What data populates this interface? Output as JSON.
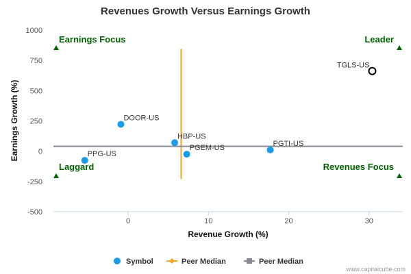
{
  "chart_data": {
    "type": "scatter",
    "title": "Revenues Growth Versus Earnings Growth",
    "xlabel": "Revenue Growth (%)",
    "ylabel": "Earnings Growth (%)",
    "xlim": [
      -9.3,
      34.2
    ],
    "ylim": [
      -500,
      1000
    ],
    "xticks": [
      0,
      10,
      20,
      30
    ],
    "xtick_labels": [
      "0",
      "10",
      "20",
      "30"
    ],
    "yticks": [
      -500,
      -250,
      0,
      250,
      500,
      750,
      1000
    ],
    "ytick_labels": [
      "-500",
      "-250",
      "0",
      "250",
      "500",
      "750",
      "1000"
    ],
    "grid": false,
    "series": [
      {
        "name": "Symbol",
        "color": "#1a9ce8",
        "points": [
          {
            "label": "DOOR-US",
            "x": -0.9,
            "y": 222
          },
          {
            "label": "HBP-US",
            "x": 5.8,
            "y": 70
          },
          {
            "label": "PGEM-US",
            "x": 7.3,
            "y": -25
          },
          {
            "label": "PGTI-US",
            "x": 17.7,
            "y": 10
          },
          {
            "label": "PPG-US",
            "x": -5.4,
            "y": -76
          }
        ]
      },
      {
        "name": "Peer Median",
        "color": "#f5a623",
        "orientation": "vertical",
        "x": 6.6,
        "y_range": [
          -230,
          845
        ]
      },
      {
        "name": "Peer Median",
        "color": "#8a8a96",
        "orientation": "horizontal",
        "y": 40,
        "x_range": [
          -9.3,
          34.2
        ]
      }
    ],
    "highlight": {
      "label": "TGLS-US",
      "x": 30.4,
      "y": 662
    },
    "quadrant_labels": {
      "top_left": "Earnings Focus",
      "top_right": "Leader",
      "bottom_left": "Laggard",
      "bottom_right": "Revenues Focus"
    },
    "quadrant_marker_color": "#006400",
    "legend_position": "bottom-center"
  },
  "credit": "www.capitalcube.com"
}
